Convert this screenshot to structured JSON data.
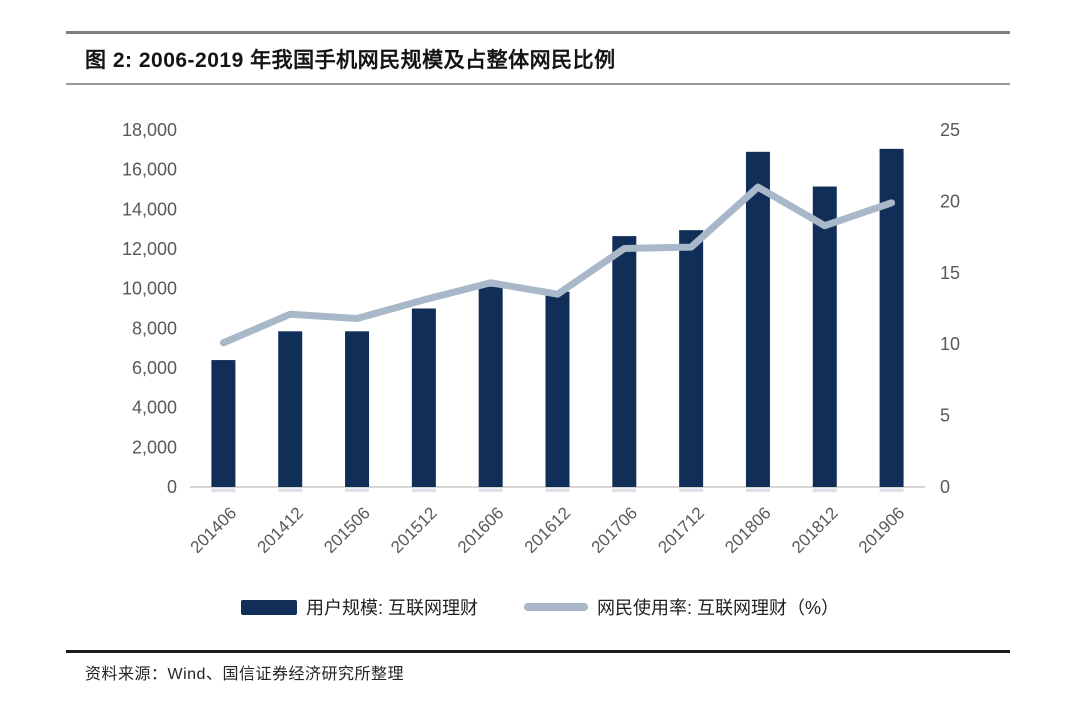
{
  "figure": {
    "title": "图 2:  2006-2019 年我国手机网民规模及占整体网民比例",
    "source_note": "资料来源：Wind、国信证券经济研究所整理"
  },
  "colors": {
    "bar": "#112E58",
    "line": "#A9B8C8",
    "axis_text": "#595959",
    "axis_line": "#D6D6D6",
    "title_text": "#141414",
    "legend_text": "#1F1F1F",
    "source_text": "#242424",
    "rule_gray": "#7F7F7F",
    "rule_mid": "#9A9A9A",
    "rule_dark": "#1C1C1C"
  },
  "chart_data": {
    "type": "bar",
    "categories": [
      "201406",
      "201412",
      "201506",
      "201512",
      "201606",
      "201612",
      "201706",
      "201712",
      "201806",
      "201812",
      "201906"
    ],
    "series": [
      {
        "name": "用户规模: 互联网理财",
        "type": "bar",
        "axis": "left",
        "values": [
          6400,
          7850,
          7850,
          9000,
          10100,
          9850,
          12650,
          12950,
          16900,
          15150,
          17050
        ]
      },
      {
        "name": "网民使用率: 互联网理财（%）",
        "type": "line",
        "axis": "right",
        "values": [
          10.1,
          12.1,
          11.8,
          13.1,
          14.3,
          13.5,
          16.7,
          16.8,
          21.0,
          18.3,
          19.9
        ]
      }
    ],
    "left_axis": {
      "min": 0,
      "max": 18000,
      "tick_step": 2000,
      "tick_labels": [
        "0",
        "2,000",
        "4,000",
        "6,000",
        "8,000",
        "10,000",
        "12,000",
        "14,000",
        "16,000",
        "18,000"
      ]
    },
    "right_axis": {
      "min": 0,
      "max": 25,
      "tick_step": 5,
      "tick_labels": [
        "0",
        "5",
        "10",
        "15",
        "20",
        "25"
      ]
    },
    "grid": false,
    "legend_position": "bottom",
    "x_label_rotation": -45
  }
}
